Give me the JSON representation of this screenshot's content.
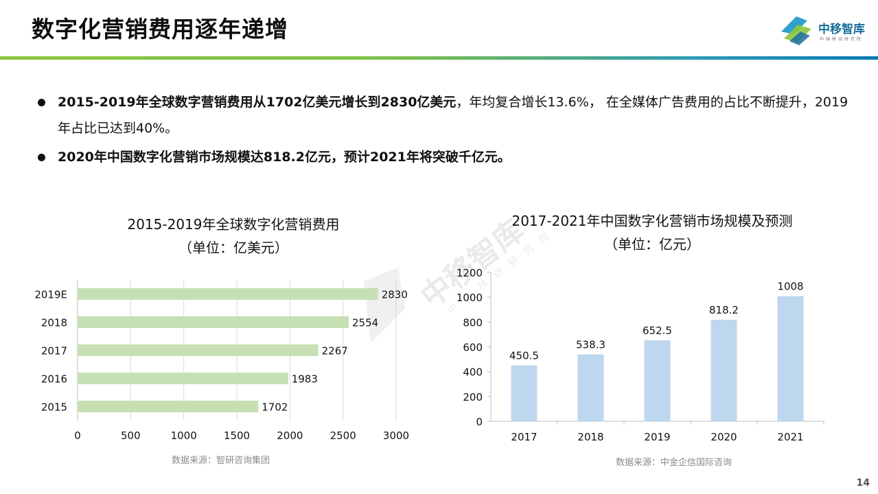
{
  "slide": {
    "title": "数字化营销费用逐年递增",
    "page_number": "14"
  },
  "logo": {
    "name": "中移智库",
    "subtitle": "中国移动研究院"
  },
  "watermark": {
    "main": "中移智库",
    "sub": "中国移动研究院"
  },
  "bullets": [
    {
      "bold": "2015-2019年全球数字营销费用从1702亿美元增长到2830亿美元",
      "normal": "，年均复合增长13.6%， 在全媒体广告费用的占比不断提升，2019年占比已达到40%。"
    },
    {
      "bold": "2020年中国数字化营销市场规模达818.2亿元，预计2021年将突破千亿元。",
      "normal": ""
    }
  ],
  "colors": {
    "global_bar": "#c6e0b4",
    "china_bar": "#bdd7ee",
    "header_rule_start": "#8cc63f",
    "header_rule_end": "#0a7cb4"
  },
  "chart_data": [
    {
      "type": "bar",
      "orientation": "horizontal",
      "title": "2015-2019年全球数字化营销费用",
      "subtitle": "（单位：亿美元）",
      "categories": [
        "2019E",
        "2018",
        "2017",
        "2016",
        "2015"
      ],
      "values": [
        2830,
        2554,
        2267,
        1983,
        1702
      ],
      "xlim": [
        0,
        3000
      ],
      "x_ticks": [
        0,
        500,
        1000,
        1500,
        2000,
        2500,
        3000
      ],
      "grid": "vertical",
      "bar_color": "#c6e0b4",
      "source": "数据来源：智研咨询集团"
    },
    {
      "type": "bar",
      "orientation": "vertical",
      "title": "2017-2021年中国数字化营销市场规模及预测",
      "subtitle": "（单位：亿元）",
      "categories": [
        "2017",
        "2018",
        "2019",
        "2020",
        "2021"
      ],
      "values": [
        450.5,
        538.3,
        652.5,
        818.2,
        1008
      ],
      "ylim": [
        0,
        1200
      ],
      "y_ticks": [
        0,
        200,
        400,
        600,
        800,
        1000,
        1200
      ],
      "grid": "none",
      "bar_color": "#bdd7ee",
      "source": "数据来源：中金企信国际咨询"
    }
  ]
}
